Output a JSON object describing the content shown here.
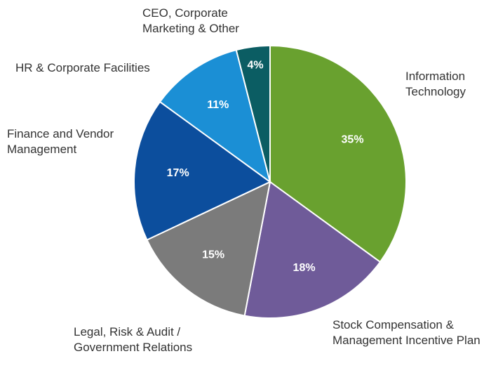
{
  "chart_data": {
    "type": "pie",
    "categories": [
      "Information Technology",
      "Stock Compensation & Management Incentive Plan",
      "Legal, Risk & Audit / Government Relations",
      "Finance and Vendor Management",
      "HR & Corporate Facilities",
      "CEO, Corporate Marketing & Other"
    ],
    "values": [
      35,
      18,
      15,
      17,
      11,
      4
    ],
    "value_labels": [
      "35%",
      "18%",
      "15%",
      "17%",
      "11%",
      "4%"
    ],
    "colors": [
      "#69a12f",
      "#6f5b99",
      "#7b7b7b",
      "#0c4e9d",
      "#1b8fd5",
      "#0b5d63"
    ]
  }
}
